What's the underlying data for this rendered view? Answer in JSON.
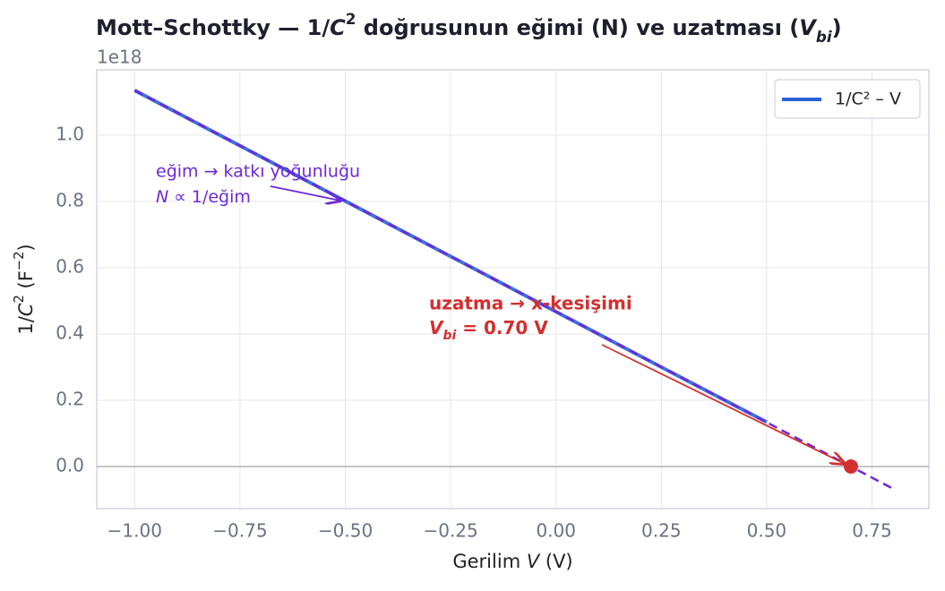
{
  "chart_data": {
    "type": "line",
    "title": [
      "Mott–Schottky — 1/",
      "C",
      "2",
      " doğrusunun eğimi (N) ve uzatması (",
      "V",
      "bi",
      ")"
    ],
    "y_offset": "1e18",
    "xlabel": [
      "Gerilim  ",
      "V",
      "  (V)"
    ],
    "ylabel": [
      "1/",
      "C",
      "2",
      "  (F",
      "−2",
      ")"
    ],
    "xlim": [
      -1.09,
      0.885
    ],
    "ylim": [
      -0.127,
      1.197
    ],
    "xticks": [
      {
        "value": -1,
        "label": "−1.00"
      },
      {
        "value": -0.75,
        "label": "−0.75"
      },
      {
        "value": -0.5,
        "label": "−0.50"
      },
      {
        "value": -0.25,
        "label": "−0.25"
      },
      {
        "value": 0,
        "label": "0.00"
      },
      {
        "value": 0.25,
        "label": "0.25"
      },
      {
        "value": 0.5,
        "label": "0.50"
      },
      {
        "value": 0.75,
        "label": "0.75"
      }
    ],
    "yticks": [
      {
        "value": 0,
        "label": "0.0"
      },
      0.2,
      0.4,
      0.6,
      0.8,
      {
        "value": 1,
        "label": "1.0"
      }
    ],
    "grid": true,
    "legend": "upper right",
    "series": [
      {
        "name": "1/C² – V",
        "color": "#2b62d6",
        "style": "solid",
        "x": [
          -1,
          -0.75,
          -0.5,
          -0.25,
          0,
          0.25,
          0.5
        ],
        "values": [
          1.135,
          0.968,
          0.801,
          0.634,
          0.467,
          0.3,
          0.134
        ]
      },
      {
        "color": "#6d28d9",
        "style": "dashed",
        "x": [
          -1,
          0.8
        ],
        "values": [
          1.135,
          -0.067
        ]
      },
      {
        "color": "#d32f2f",
        "style": "marker",
        "x": [
          0.7
        ],
        "values": [
          0
        ]
      }
    ],
    "annotations": [
      {
        "color": "#6d28d9",
        "lines": [
          [
            "eğim → katkı yoğunluğu"
          ],
          [
            "N",
            " ∝ 1/eğim"
          ]
        ]
      },
      {
        "color": "#d32f2f",
        "lines": [
          [
            "uzatma → x-kesişimi"
          ],
          [
            "V",
            "bi",
            " = 0.70 V"
          ]
        ]
      }
    ]
  }
}
